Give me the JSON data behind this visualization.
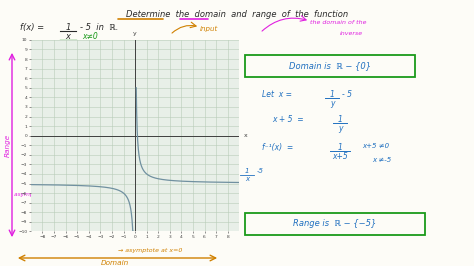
{
  "bg_color": "#fdfcf7",
  "graph_bg": "#e8efe8",
  "grid_color": "#b8ccb8",
  "curve_color": "#7090a0",
  "axis_color": "#404040",
  "dark_text": "#2a2a2a",
  "magenta": "#e020e0",
  "orange": "#d08000",
  "green": "#1a9a1a",
  "cyan_blue": "#2070c0",
  "graph_xlim": [
    -9,
    9
  ],
  "graph_ylim": [
    -10,
    10
  ]
}
